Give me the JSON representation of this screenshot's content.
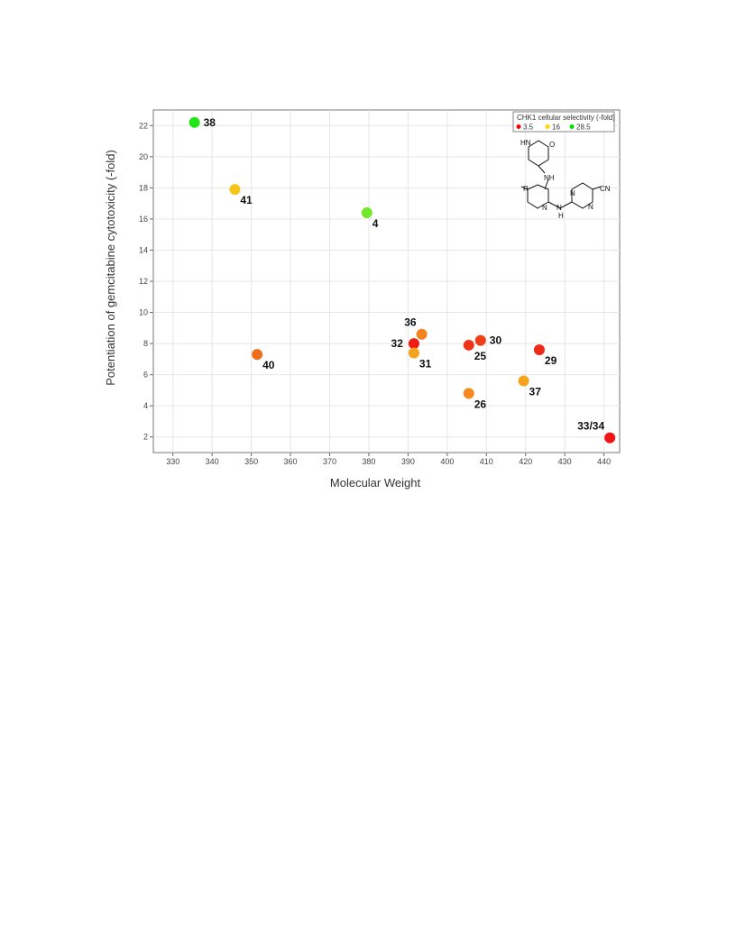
{
  "chart_data": {
    "type": "scatter",
    "xlabel": "Molecular Weight",
    "ylabel": "Potentiation of gemcitabine cytotoxicity (-fold)",
    "xlim": [
      325,
      444
    ],
    "ylim": [
      1,
      23
    ],
    "xticks": [
      330,
      340,
      350,
      360,
      370,
      380,
      390,
      400,
      410,
      420,
      430,
      440
    ],
    "yticks": [
      2,
      4,
      6,
      8,
      10,
      12,
      14,
      16,
      18,
      20,
      22
    ],
    "grid": true,
    "legend": {
      "title": "CHK1 cellular selectivity (-fold)",
      "placement": "top-right",
      "entries": [
        {
          "label": "3.5",
          "color": "#ff0000"
        },
        {
          "label": "16",
          "color": "#ffd200"
        },
        {
          "label": "28.5",
          "color": "#00e000"
        }
      ]
    },
    "points": [
      {
        "label": "38",
        "x": 335.5,
        "y": 22.2,
        "color": "#22e61a",
        "label_pos": "right"
      },
      {
        "label": "41",
        "x": 345.8,
        "y": 17.9,
        "color": "#f5c518",
        "label_pos": "below-right"
      },
      {
        "label": "4",
        "x": 379.5,
        "y": 16.4,
        "color": "#72e628",
        "label_pos": "below-right"
      },
      {
        "label": "40",
        "x": 351.5,
        "y": 7.3,
        "color": "#ee6e1c",
        "label_pos": "below-right"
      },
      {
        "label": "36",
        "x": 393.5,
        "y": 8.6,
        "color": "#f5821f",
        "label_pos": "above-left"
      },
      {
        "label": "32",
        "x": 391.5,
        "y": 8.0,
        "color": "#f01d14",
        "label_pos": "left"
      },
      {
        "label": "31",
        "x": 391.5,
        "y": 7.4,
        "color": "#f7a21e",
        "label_pos": "below-right"
      },
      {
        "label": "25",
        "x": 405.5,
        "y": 7.9,
        "color": "#ef3418",
        "label_pos": "below-right"
      },
      {
        "label": "30",
        "x": 408.5,
        "y": 8.2,
        "color": "#ef3f18",
        "label_pos": "right"
      },
      {
        "label": "26",
        "x": 405.5,
        "y": 4.8,
        "color": "#f5891f",
        "label_pos": "below-right"
      },
      {
        "label": "37",
        "x": 419.5,
        "y": 5.6,
        "color": "#f6a41f",
        "label_pos": "below-right"
      },
      {
        "label": "29",
        "x": 423.5,
        "y": 7.6,
        "color": "#ef2a18",
        "label_pos": "below-right"
      },
      {
        "label": "33/34",
        "x": 441.5,
        "y": 1.95,
        "color": "#f01414",
        "label_pos": "above-left"
      }
    ]
  },
  "structure": {
    "labels": [
      "HN",
      "O",
      "NH",
      "R",
      "N",
      "N",
      "H",
      "N",
      "N",
      "CN"
    ]
  }
}
